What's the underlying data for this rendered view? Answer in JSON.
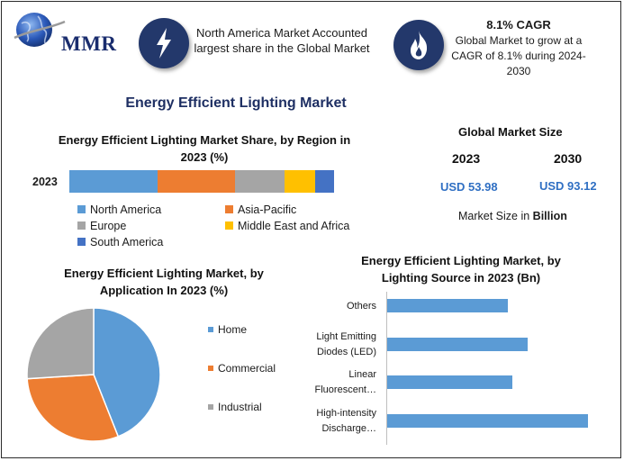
{
  "header": {
    "logo_text": "MMR",
    "info1": "North America Market Accounted largest share in the Global Market",
    "info2_title": "8.1% CAGR",
    "info2_text": "Global Market to grow at a CAGR of 8.1% during 2024-2030",
    "info1_icon": "lightning-bolt-icon",
    "info2_icon": "flame-icon"
  },
  "main_title": "Energy Efficient Lighting Market",
  "market_size": {
    "title": "Global Market Size",
    "year1": "2023",
    "year2": "2030",
    "value1": "USD 53.98",
    "value2": "USD 93.12",
    "note_prefix": "Market Size in ",
    "note_bold": "Billion"
  },
  "colors": {
    "north_america": "#5b9bd5",
    "asia_pacific": "#ed7d31",
    "europe": "#a5a5a5",
    "middle_east_africa": "#ffc000",
    "south_america": "#4472c4",
    "header_icon": "#23386b",
    "title": "#1e2f63",
    "value_blue": "#2f6fc3"
  },
  "chart_data": [
    {
      "type": "bar",
      "orientation": "horizontal-stacked",
      "title": "Energy Efficient Lighting Market Share, by Region in 2023 (%)",
      "categories": [
        "2023"
      ],
      "series": [
        {
          "name": "North America",
          "values": [
            32
          ]
        },
        {
          "name": "Asia-Pacific",
          "values": [
            28
          ]
        },
        {
          "name": "Europe",
          "values": [
            18
          ]
        },
        {
          "name": "Middle East and Africa",
          "values": [
            11
          ]
        },
        {
          "name": "South America",
          "values": [
            7
          ]
        }
      ],
      "legend": "bottom"
    },
    {
      "type": "pie",
      "title": "Energy Efficient Lighting Market, by Application In 2023 (%)",
      "labels": [
        "Home",
        "Commercial",
        "Industrial"
      ],
      "values": [
        44,
        30,
        26
      ],
      "colors": [
        "#5b9bd5",
        "#ed7d31",
        "#a5a5a5"
      ],
      "legend": "right"
    },
    {
      "type": "bar",
      "orientation": "horizontal",
      "title": "Energy Efficient Lighting Market, by Lighting Source in 2023 (Bn)",
      "categories": [
        "Others",
        "Light Emitting Diodes (LED)",
        "Linear Fluorescent…",
        "High-intensity Discharge…"
      ],
      "category_lines": [
        [
          "Others"
        ],
        [
          "Light Emitting",
          "Diodes (LED)"
        ],
        [
          "Linear",
          "Fluorescent…"
        ],
        [
          "High-intensity",
          "Discharge…"
        ]
      ],
      "values": [
        12,
        14,
        12.5,
        20
      ],
      "xlim": [
        0,
        22
      ],
      "color": "#5b9bd5"
    }
  ]
}
